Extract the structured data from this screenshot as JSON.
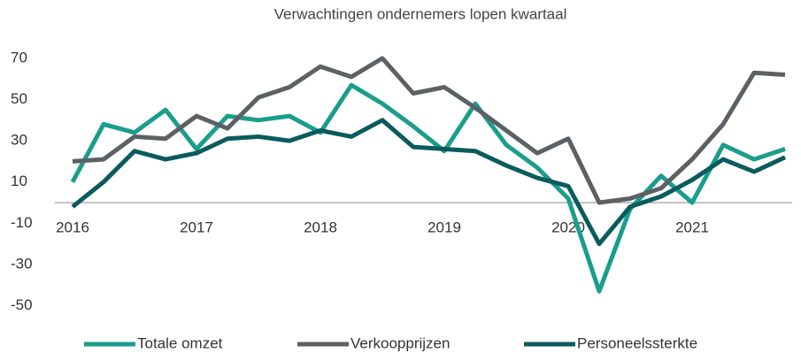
{
  "chart_data": {
    "type": "line",
    "title": "Verwachtingen ondernemers lopen kwartaal",
    "categories": [
      "2016",
      null,
      null,
      null,
      "2017",
      null,
      null,
      null,
      "2018",
      null,
      null,
      null,
      "2019",
      null,
      null,
      null,
      "2020",
      null,
      null,
      null,
      "2021",
      null,
      null,
      null
    ],
    "series": [
      {
        "name": "Totale omzet",
        "color": "#1a9e8c",
        "values": [
          10,
          38,
          34,
          45,
          26,
          42,
          40,
          42,
          34,
          57,
          48,
          37,
          25,
          48,
          28,
          17,
          2,
          -43,
          -3,
          13,
          0,
          28,
          21,
          26
        ]
      },
      {
        "name": "Verkoopprijzen",
        "color": "#5b6165",
        "values": [
          20,
          21,
          32,
          31,
          42,
          36,
          51,
          56,
          66,
          61,
          70,
          53,
          56,
          46,
          35,
          24,
          31,
          0,
          2,
          7,
          21,
          38,
          63,
          62
        ]
      },
      {
        "name": "Personeelssterkte",
        "color": "#0b5b5e",
        "values": [
          -2,
          10,
          25,
          21,
          24,
          31,
          32,
          30,
          35,
          32,
          40,
          27,
          26,
          25,
          18,
          12,
          8,
          -20,
          -2,
          3,
          11,
          21,
          15,
          22
        ]
      }
    ],
    "ylim": [
      -60,
      80
    ],
    "yticks": [
      -50,
      -30,
      -10,
      10,
      30,
      50,
      70
    ],
    "legend": "bottom"
  }
}
